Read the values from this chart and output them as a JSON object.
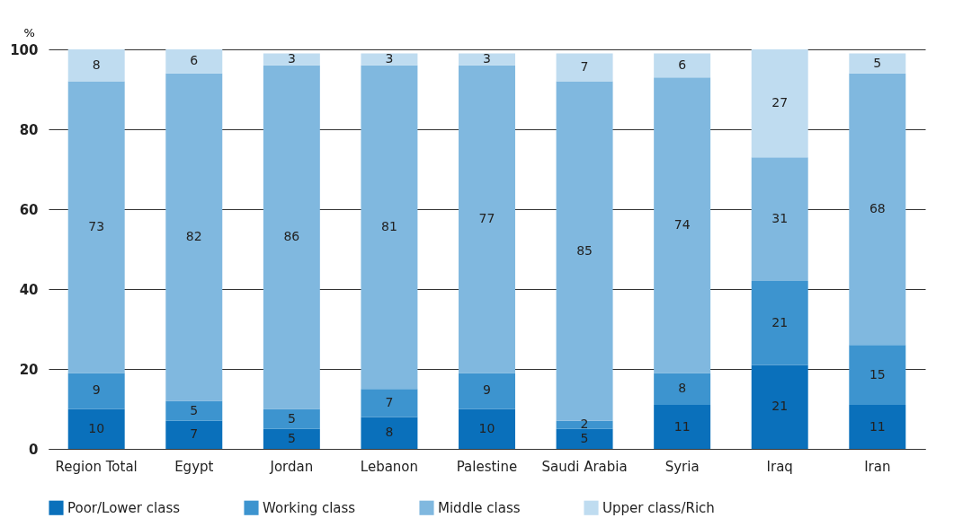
{
  "chart_data": {
    "type": "bar",
    "stacked": true,
    "ylabel": "%",
    "categories": [
      "Region Total",
      "Egypt",
      "Jordan",
      "Lebanon",
      "Palestine",
      "Saudi Arabia",
      "Syria",
      "Iraq",
      "Iran"
    ],
    "series": [
      {
        "name": "Poor/Lower class",
        "color": "#0a70bb",
        "values": [
          10,
          7,
          5,
          8,
          10,
          5,
          11,
          21,
          11
        ]
      },
      {
        "name": "Working class",
        "color": "#3d94cf",
        "values": [
          9,
          5,
          5,
          7,
          9,
          2,
          8,
          21,
          15
        ]
      },
      {
        "name": "Middle class",
        "color": "#80b8df",
        "values": [
          73,
          82,
          86,
          81,
          77,
          85,
          74,
          31,
          68
        ]
      },
      {
        "name": "Upper class/Rich",
        "color": "#bfdcf0",
        "values": [
          8,
          6,
          3,
          3,
          3,
          7,
          6,
          27,
          5
        ]
      }
    ],
    "ylim": [
      0,
      100
    ],
    "yticks": [
      0,
      20,
      40,
      60,
      80,
      100
    ],
    "grid": "y",
    "legend": "bottom",
    "data_labels": true
  }
}
